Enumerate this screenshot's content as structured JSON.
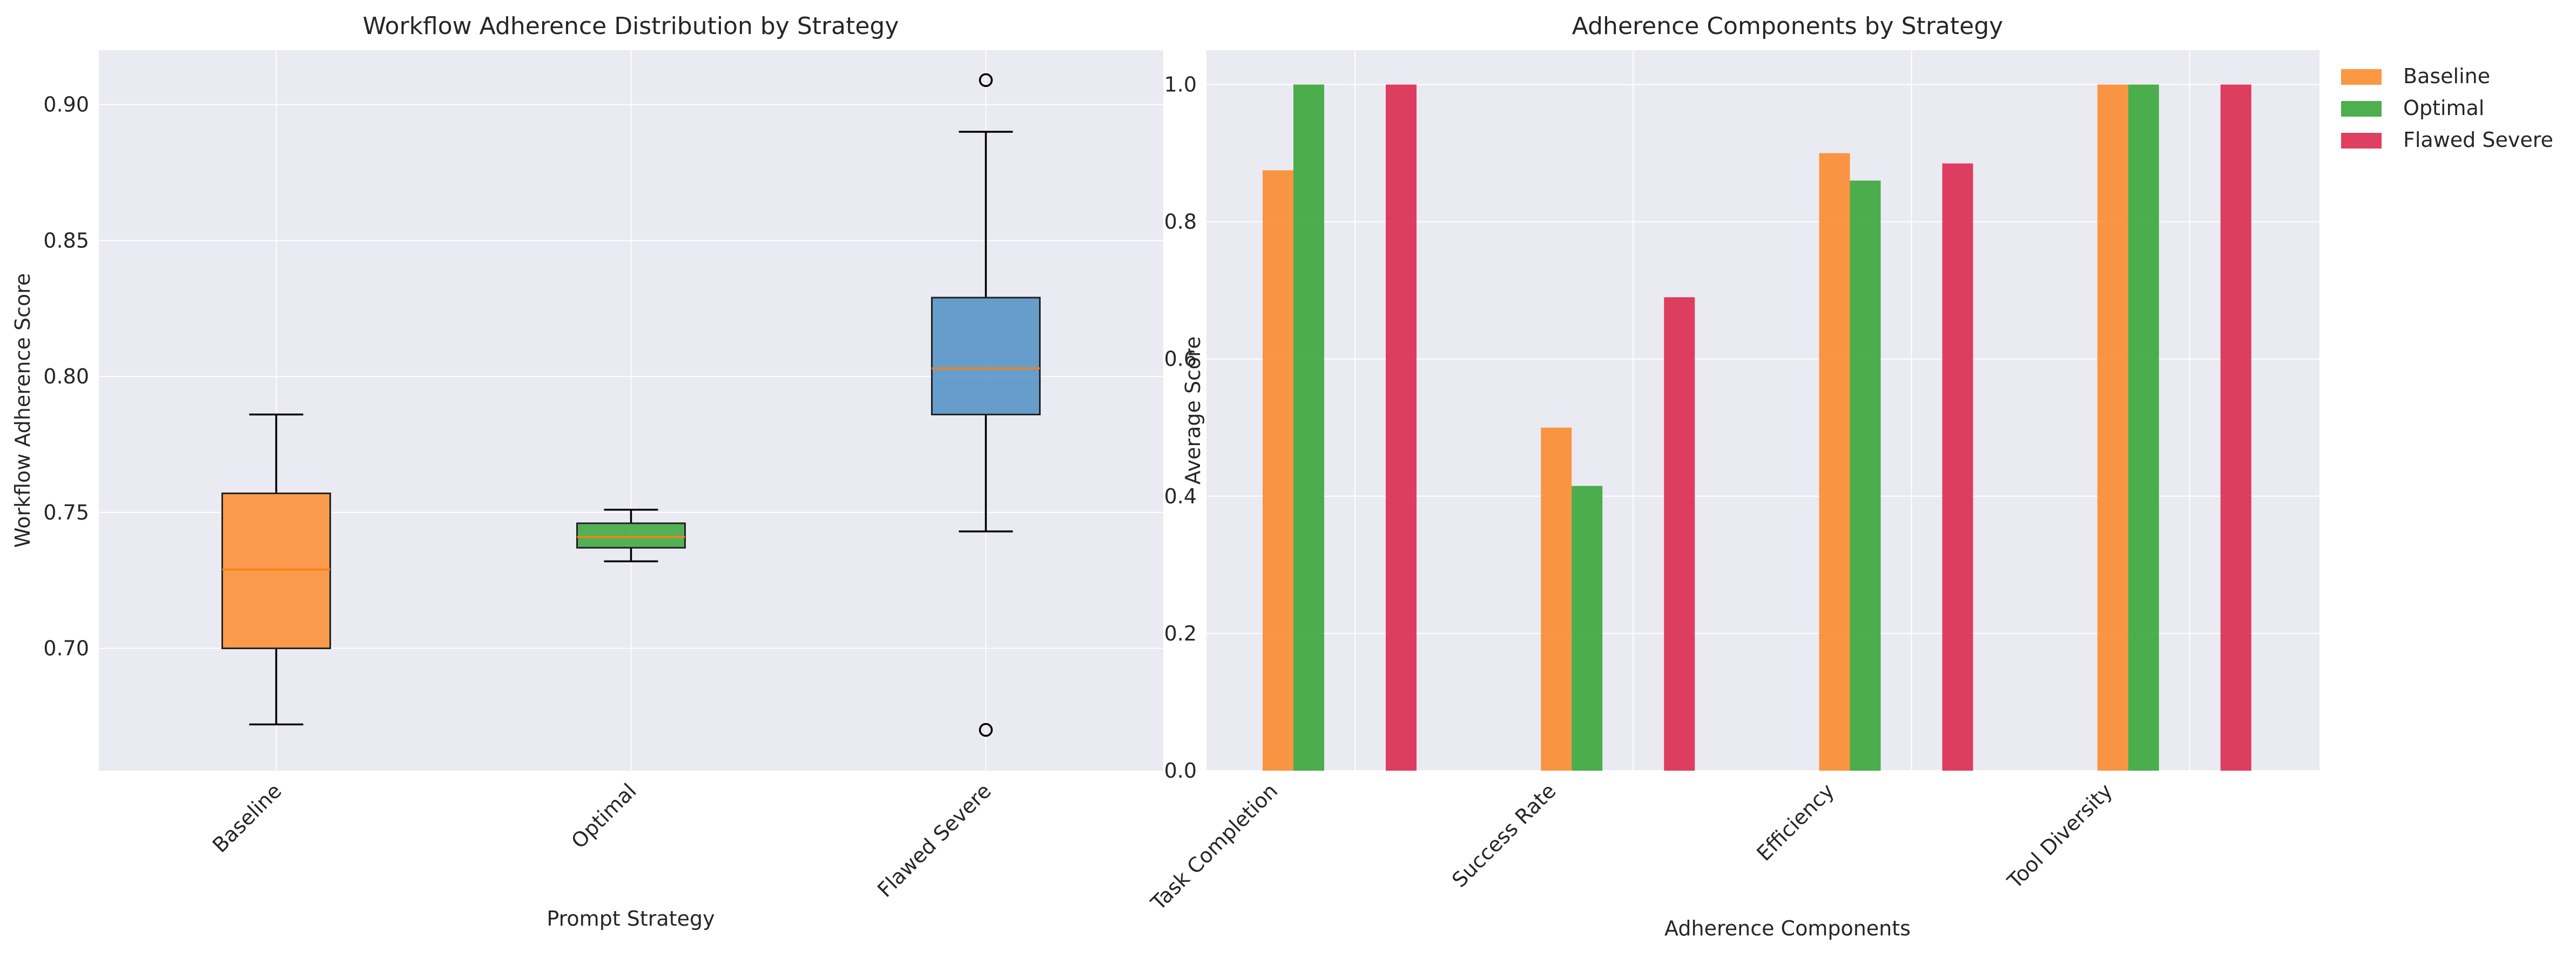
{
  "colors": {
    "baseline": "#fb8c2f",
    "optimal": "#3aa63a",
    "flawed_severe": "#dc2a4f",
    "box_blue": "#4f8fc4",
    "median": "#ff7f0e",
    "plot_bg": "#eaeaf2",
    "grid": "#ffffff"
  },
  "chart_data": [
    {
      "type": "box",
      "title": "Workflow Adherence Distribution by Strategy",
      "xlabel": "Prompt Strategy",
      "ylabel": "Workflow Adherence Score",
      "ylim": [
        0.655,
        0.92
      ],
      "yticks": [
        0.7,
        0.75,
        0.8,
        0.85,
        0.9
      ],
      "ytick_labels": [
        "0.70",
        "0.75",
        "0.80",
        "0.85",
        "0.90"
      ],
      "categories": [
        "Baseline",
        "Optimal",
        "Flawed Severe"
      ],
      "boxes": [
        {
          "name": "Baseline",
          "whisker_low": 0.672,
          "q1": 0.7,
          "median": 0.729,
          "q3": 0.757,
          "whisker_high": 0.786,
          "outliers": [],
          "color_key": "baseline"
        },
        {
          "name": "Optimal",
          "whisker_low": 0.732,
          "q1": 0.737,
          "median": 0.741,
          "q3": 0.746,
          "whisker_high": 0.751,
          "outliers": [],
          "color_key": "optimal"
        },
        {
          "name": "Flawed Severe",
          "whisker_low": 0.743,
          "q1": 0.786,
          "median": 0.803,
          "q3": 0.829,
          "whisker_high": 0.89,
          "outliers": [
            0.909,
            0.67
          ],
          "color_key": "box_blue"
        }
      ]
    },
    {
      "type": "bar",
      "title": "Adherence Components by Strategy",
      "xlabel": "Adherence Components",
      "ylabel": "Average Score",
      "ylim": [
        0,
        1.05
      ],
      "yticks": [
        0.0,
        0.2,
        0.4,
        0.6,
        0.8,
        1.0
      ],
      "ytick_labels": [
        "0.0",
        "0.2",
        "0.4",
        "0.6",
        "0.8",
        "1.0"
      ],
      "categories": [
        "Task Completion",
        "Success Rate",
        "Efficiency",
        "Tool Diversity"
      ],
      "series": [
        {
          "name": "Baseline",
          "values": [
            0.875,
            0.5,
            0.9,
            1.0
          ],
          "color_key": "baseline"
        },
        {
          "name": "Optimal",
          "values": [
            1.0,
            0.415,
            0.86,
            1.0
          ],
          "color_key": "optimal"
        },
        {
          "name": "Flawed Severe",
          "values": [
            1.0,
            0.69,
            0.885,
            1.0
          ],
          "color_key": "flawed_severe"
        }
      ],
      "legend_position": "outside-top-right"
    }
  ]
}
